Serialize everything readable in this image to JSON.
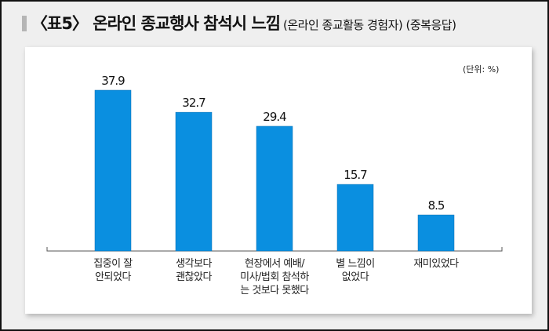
{
  "title": {
    "main": "〈표5〉 온라인 종교행사 참석시 느낌",
    "sub": "(온라인 종교활동 경험자) (중복응답)"
  },
  "chart_data": {
    "type": "bar",
    "title": "〈표5〉 온라인 종교행사 참석시 느낌",
    "subtitle": "(온라인 종교활동 경험자) (중복응답)",
    "unit_label": "(단위: %)",
    "categories": [
      "집중이 잘\n안되었다",
      "생각보다\n괜찮았다",
      "현장에서 예배/\n미사/법회 참석하\n는 것보다 못했다",
      "별 느낌이\n없었다",
      "재미있었다"
    ],
    "values": [
      37.9,
      32.7,
      29.4,
      15.7,
      8.5
    ],
    "value_labels": [
      "37.9",
      "32.7",
      "29.4",
      "15.7",
      "8.5"
    ],
    "ylim": [
      0,
      40
    ],
    "grid": false,
    "bar_color": "#0a8fe0"
  }
}
